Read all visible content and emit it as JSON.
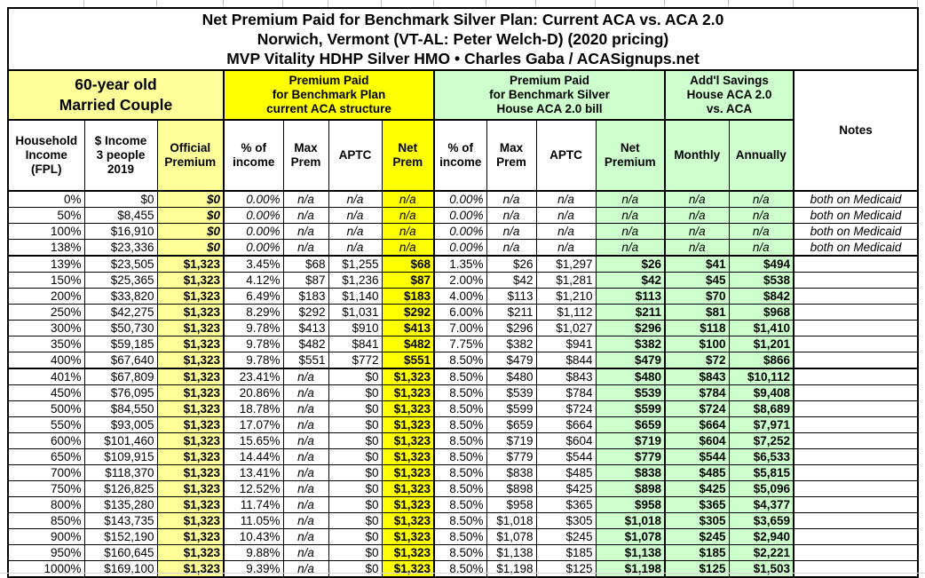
{
  "title": {
    "line1": "Net Premium Paid for Benchmark Silver Plan: Current ACA vs. ACA 2.0",
    "line2": "Norwich, Vermont (VT-AL: Peter Welch-D) (2020 pricing)",
    "line3": "MVP Vitality HDHP Silver HMO • Charles Gaba / ACASignups.net"
  },
  "groups": {
    "demographic": "60-year old\nMarried Couple",
    "aca": "Premium Paid\nfor Benchmark Plan\ncurrent ACA structure",
    "aca2": "Premium Paid\nfor Benchmark Silver\nHouse ACA 2.0 bill",
    "savings": "Add'l Savings\nHouse ACA 2.0\nvs. ACA"
  },
  "columns": [
    "Household\nIncome\n(FPL)",
    "$ Income\n3 people\n2019",
    "Official\nPremium",
    "% of\nincome",
    "Max\nPrem",
    "APTC",
    "Net\nPrem",
    "% of\nincome",
    "Max\nPrem",
    "APTC",
    "Net\nPremium",
    "Monthly",
    "Annually",
    "Notes"
  ],
  "colors": {
    "light_yellow": "#FFFF99",
    "yellow": "#FFFF00",
    "light_green": "#CCFFCC",
    "border": "#000000",
    "gridline_gray": "#BFBFBF"
  },
  "chart_data": {
    "type": "table",
    "column_headers": [
      "Household Income (FPL)",
      "$ Income 3 people 2019",
      "Official Premium",
      "ACA % of income",
      "ACA Max Prem",
      "ACA APTC",
      "ACA Net Prem",
      "ACA 2.0 % of income",
      "ACA 2.0 Max Prem",
      "ACA 2.0 APTC",
      "ACA 2.0 Net Premium",
      "Savings Monthly",
      "Savings Annually",
      "Notes"
    ],
    "section_breaks_after": [
      "138%",
      "400%"
    ],
    "medicaid_note": "both on Medicaid",
    "rows": [
      [
        "0%",
        "$0",
        "$0",
        "0.00%",
        "n/a",
        "n/a",
        "n/a",
        "0.00%",
        "n/a",
        "n/a",
        "n/a",
        "n/a",
        "n/a",
        "both on Medicaid"
      ],
      [
        "50%",
        "$8,455",
        "$0",
        "0.00%",
        "n/a",
        "n/a",
        "n/a",
        "0.00%",
        "n/a",
        "n/a",
        "n/a",
        "n/a",
        "n/a",
        "both on Medicaid"
      ],
      [
        "100%",
        "$16,910",
        "$0",
        "0.00%",
        "n/a",
        "n/a",
        "n/a",
        "0.00%",
        "n/a",
        "n/a",
        "n/a",
        "n/a",
        "n/a",
        "both on Medicaid"
      ],
      [
        "138%",
        "$23,336",
        "$0",
        "0.00%",
        "n/a",
        "n/a",
        "n/a",
        "0.00%",
        "n/a",
        "n/a",
        "n/a",
        "n/a",
        "n/a",
        "both on Medicaid"
      ],
      [
        "139%",
        "$23,505",
        "$1,323",
        "3.45%",
        "$68",
        "$1,255",
        "$68",
        "1.35%",
        "$26",
        "$1,297",
        "$26",
        "$41",
        "$494",
        ""
      ],
      [
        "150%",
        "$25,365",
        "$1,323",
        "4.12%",
        "$87",
        "$1,236",
        "$87",
        "2.00%",
        "$42",
        "$1,281",
        "$42",
        "$45",
        "$538",
        ""
      ],
      [
        "200%",
        "$33,820",
        "$1,323",
        "6.49%",
        "$183",
        "$1,140",
        "$183",
        "4.00%",
        "$113",
        "$1,210",
        "$113",
        "$70",
        "$842",
        ""
      ],
      [
        "250%",
        "$42,275",
        "$1,323",
        "8.29%",
        "$292",
        "$1,031",
        "$292",
        "6.00%",
        "$211",
        "$1,112",
        "$211",
        "$81",
        "$968",
        ""
      ],
      [
        "300%",
        "$50,730",
        "$1,323",
        "9.78%",
        "$413",
        "$910",
        "$413",
        "7.00%",
        "$296",
        "$1,027",
        "$296",
        "$118",
        "$1,410",
        ""
      ],
      [
        "350%",
        "$59,185",
        "$1,323",
        "9.78%",
        "$482",
        "$841",
        "$482",
        "7.75%",
        "$382",
        "$941",
        "$382",
        "$100",
        "$1,201",
        ""
      ],
      [
        "400%",
        "$67,640",
        "$1,323",
        "9.78%",
        "$551",
        "$772",
        "$551",
        "8.50%",
        "$479",
        "$844",
        "$479",
        "$72",
        "$866",
        ""
      ],
      [
        "401%",
        "$67,809",
        "$1,323",
        "23.41%",
        "n/a",
        "$0",
        "$1,323",
        "8.50%",
        "$480",
        "$843",
        "$480",
        "$843",
        "$10,112",
        ""
      ],
      [
        "450%",
        "$76,095",
        "$1,323",
        "20.86%",
        "n/a",
        "$0",
        "$1,323",
        "8.50%",
        "$539",
        "$784",
        "$539",
        "$784",
        "$9,408",
        ""
      ],
      [
        "500%",
        "$84,550",
        "$1,323",
        "18.78%",
        "n/a",
        "$0",
        "$1,323",
        "8.50%",
        "$599",
        "$724",
        "$599",
        "$724",
        "$8,689",
        ""
      ],
      [
        "550%",
        "$93,005",
        "$1,323",
        "17.07%",
        "n/a",
        "$0",
        "$1,323",
        "8.50%",
        "$659",
        "$664",
        "$659",
        "$664",
        "$7,971",
        ""
      ],
      [
        "600%",
        "$101,460",
        "$1,323",
        "15.65%",
        "n/a",
        "$0",
        "$1,323",
        "8.50%",
        "$719",
        "$604",
        "$719",
        "$604",
        "$7,252",
        ""
      ],
      [
        "650%",
        "$109,915",
        "$1,323",
        "14.44%",
        "n/a",
        "$0",
        "$1,323",
        "8.50%",
        "$779",
        "$544",
        "$779",
        "$544",
        "$6,533",
        ""
      ],
      [
        "700%",
        "$118,370",
        "$1,323",
        "13.41%",
        "n/a",
        "$0",
        "$1,323",
        "8.50%",
        "$838",
        "$485",
        "$838",
        "$485",
        "$5,815",
        ""
      ],
      [
        "750%",
        "$126,825",
        "$1,323",
        "12.52%",
        "n/a",
        "$0",
        "$1,323",
        "8.50%",
        "$898",
        "$425",
        "$898",
        "$425",
        "$5,096",
        ""
      ],
      [
        "800%",
        "$135,280",
        "$1,323",
        "11.74%",
        "n/a",
        "$0",
        "$1,323",
        "8.50%",
        "$958",
        "$365",
        "$958",
        "$365",
        "$4,377",
        ""
      ],
      [
        "850%",
        "$143,735",
        "$1,323",
        "11.05%",
        "n/a",
        "$0",
        "$1,323",
        "8.50%",
        "$1,018",
        "$305",
        "$1,018",
        "$305",
        "$3,659",
        ""
      ],
      [
        "900%",
        "$152,190",
        "$1,323",
        "10.43%",
        "n/a",
        "$0",
        "$1,323",
        "8.50%",
        "$1,078",
        "$245",
        "$1,078",
        "$245",
        "$2,940",
        ""
      ],
      [
        "950%",
        "$160,645",
        "$1,323",
        "9.88%",
        "n/a",
        "$0",
        "$1,323",
        "8.50%",
        "$1,138",
        "$185",
        "$1,138",
        "$185",
        "$2,221",
        ""
      ],
      [
        "1000%",
        "$169,100",
        "$1,323",
        "9.39%",
        "n/a",
        "$0",
        "$1,323",
        "8.50%",
        "$1,198",
        "$125",
        "$1,198",
        "$125",
        "$1,503",
        ""
      ]
    ]
  }
}
